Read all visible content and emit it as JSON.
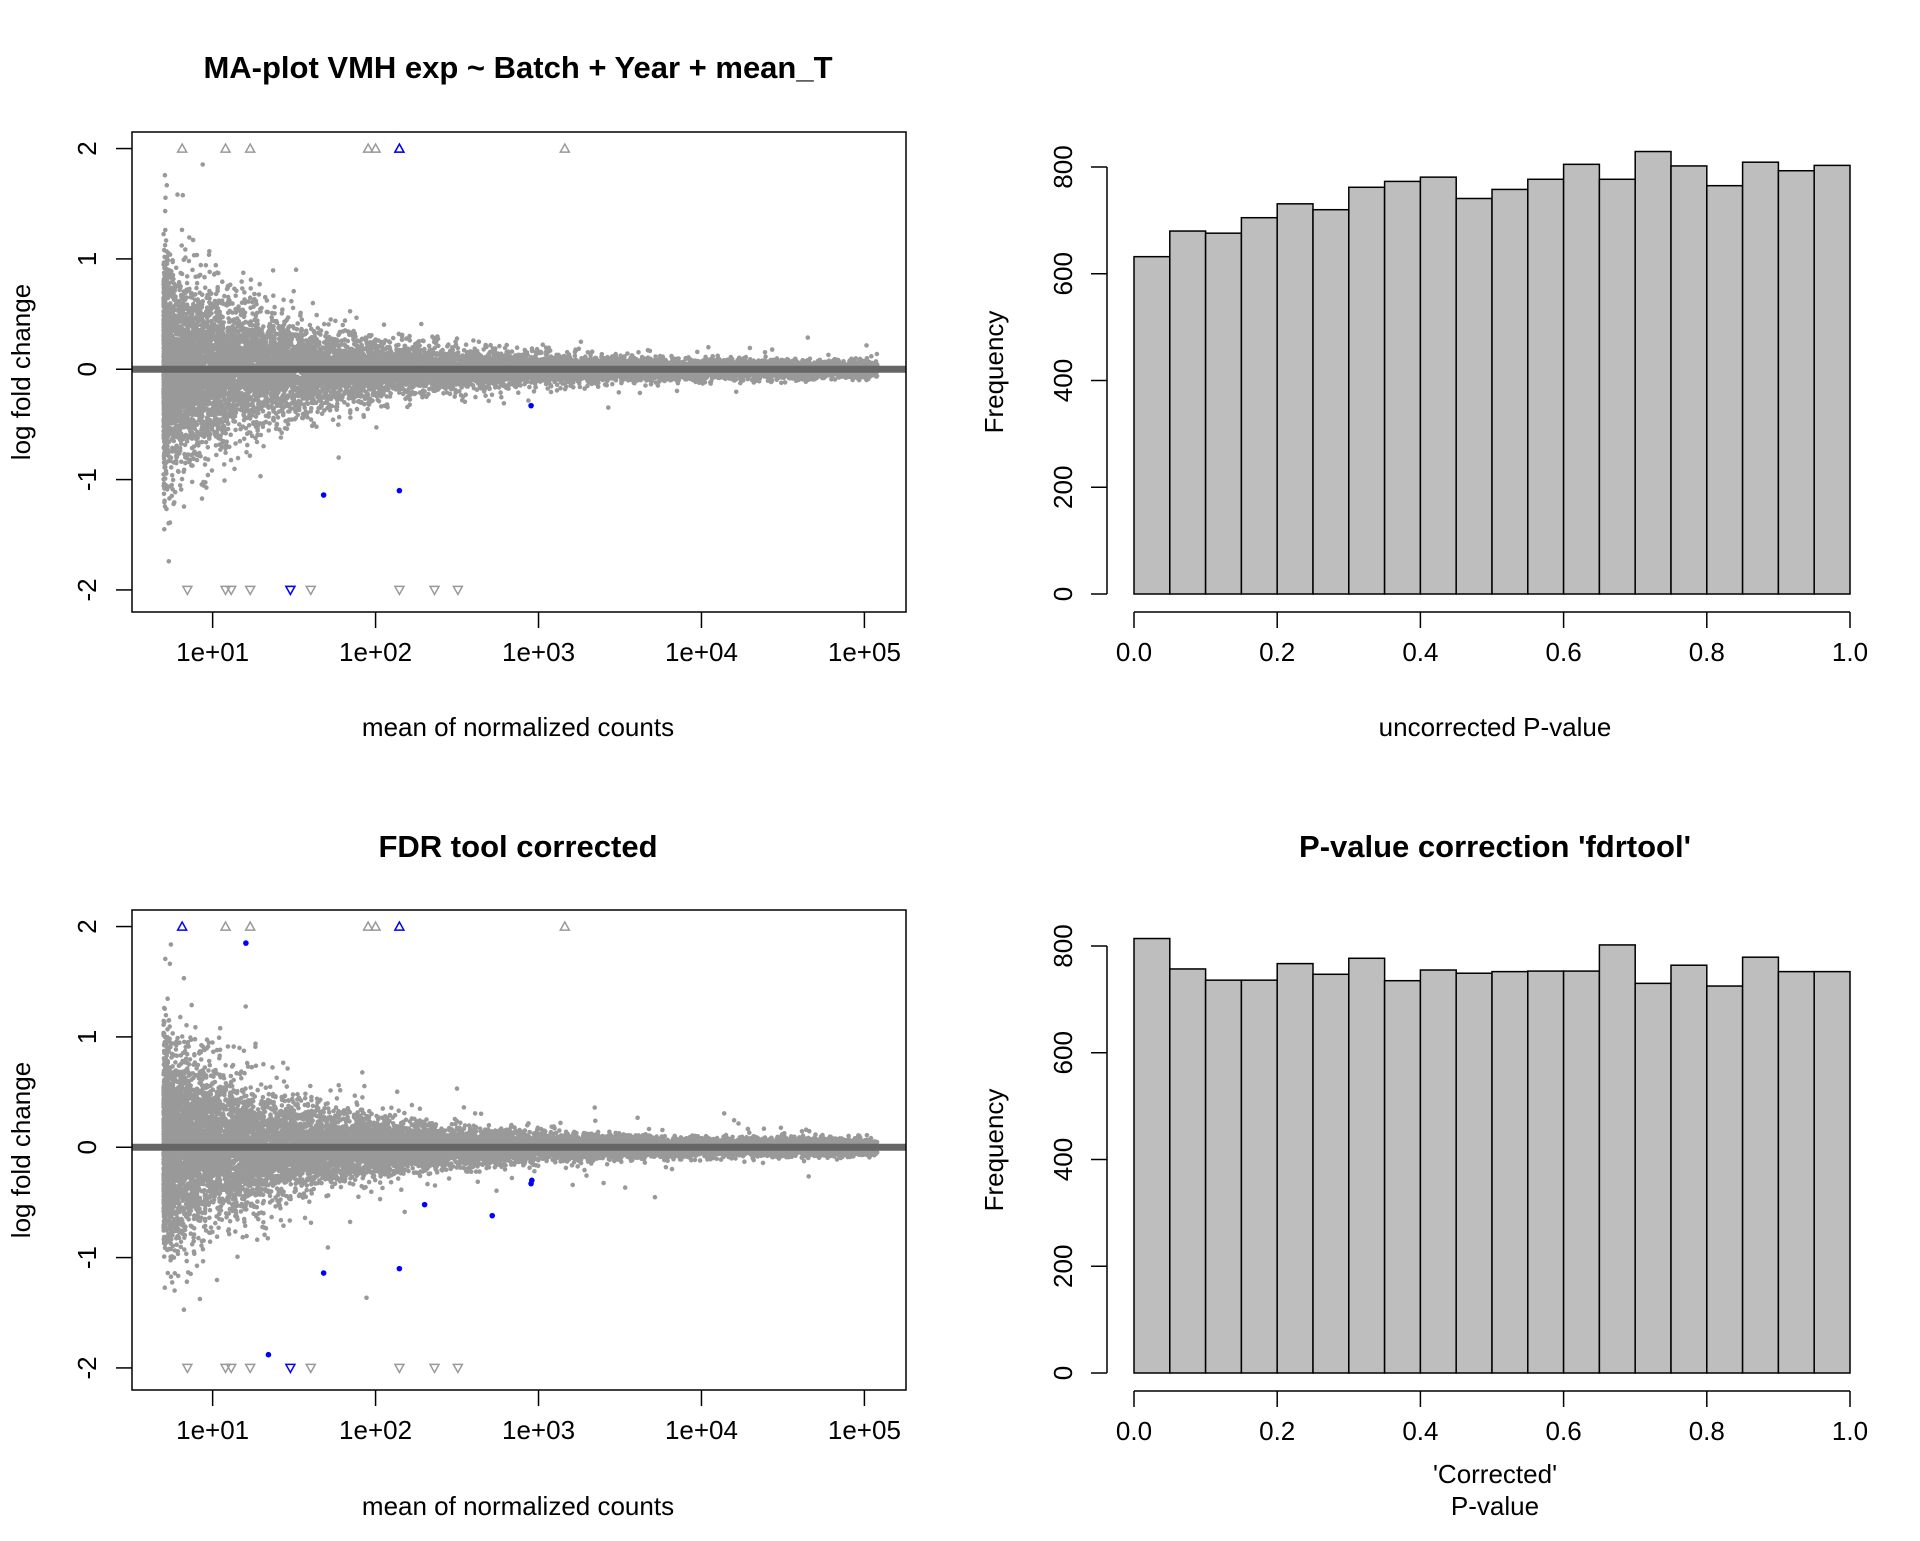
{
  "charts": {
    "ma_top": {
      "title": "MA-plot VMH exp ~ Batch + Year + mean_T",
      "xlabel": "mean of normalized counts",
      "ylabel": "log fold change",
      "xticks": [
        "1e+01",
        "1e+02",
        "1e+03",
        "1e+04",
        "1e+05"
      ],
      "yticks": [
        "-2",
        "-1",
        "0",
        "1",
        "2"
      ]
    },
    "hist_top": {
      "title": "",
      "xlabel": "uncorrected P-value",
      "ylabel": "Frequency",
      "xticks": [
        "0.0",
        "0.2",
        "0.4",
        "0.6",
        "0.8",
        "1.0"
      ],
      "yticks": [
        "0",
        "200",
        "400",
        "600",
        "800"
      ]
    },
    "ma_bottom": {
      "title": "FDR tool corrected",
      "xlabel": "mean of normalized counts",
      "ylabel": "log fold change",
      "xticks": [
        "1e+01",
        "1e+02",
        "1e+03",
        "1e+04",
        "1e+05"
      ],
      "yticks": [
        "-2",
        "-1",
        "0",
        "1",
        "2"
      ]
    },
    "hist_bottom": {
      "title": "P-value correction 'fdrtool'",
      "xlabel_line1": "'Corrected'",
      "xlabel_line2": "P-value",
      "ylabel": "Frequency",
      "xticks": [
        "0.0",
        "0.2",
        "0.4",
        "0.6",
        "0.8",
        "1.0"
      ],
      "yticks": [
        "0",
        "200",
        "400",
        "600",
        "800"
      ]
    }
  },
  "colors": {
    "points": "#999999",
    "significant": "#0000ff",
    "zero_line": "#666666",
    "bars": "#bebebe"
  },
  "chart_data": [
    {
      "type": "scatter",
      "title": "MA-plot VMH exp ~ Batch + Year + mean_T",
      "xlabel": "mean of normalized counts",
      "ylabel": "log fold change",
      "x_scale": "log10",
      "xlim": [
        3.2,
        180000
      ],
      "ylim": [
        -2.2,
        2.15
      ],
      "zero_line": 0,
      "cloud": {
        "x_min": 5,
        "x_max": 120000,
        "y_spread_at_low_mean": 0.6,
        "y_spread_at_high_mean": 0.05,
        "note_points": "dense cloud of grey points"
      },
      "out_of_range_up": [
        6.5,
        12,
        17,
        90,
        100,
        140,
        1450
      ],
      "out_of_range_down": [
        7,
        12,
        13,
        17,
        30,
        40,
        140,
        230,
        320
      ],
      "significant_points": [
        {
          "x": 140,
          "y": 2.0,
          "shape": "triangle-up"
        },
        {
          "x": 30,
          "y": -2.0,
          "shape": "triangle-down"
        },
        {
          "x": 900,
          "y": -0.33,
          "shape": "dot"
        },
        {
          "x": 48,
          "y": -1.14,
          "shape": "dot"
        },
        {
          "x": 140,
          "y": -1.1,
          "shape": "dot"
        }
      ]
    },
    {
      "type": "bar",
      "xlabel": "uncorrected P-value",
      "ylabel": "Frequency",
      "xlim": [
        0,
        1
      ],
      "ylim": [
        0,
        800
      ],
      "bin_width": 0.05,
      "categories": [
        "0.00-0.05",
        "0.05-0.10",
        "0.10-0.15",
        "0.15-0.20",
        "0.20-0.25",
        "0.25-0.30",
        "0.30-0.35",
        "0.35-0.40",
        "0.40-0.45",
        "0.45-0.50",
        "0.50-0.55",
        "0.55-0.60",
        "0.60-0.65",
        "0.65-0.70",
        "0.70-0.75",
        "0.75-0.80",
        "0.80-0.85",
        "0.85-0.90",
        "0.90-0.95",
        "0.95-1.00"
      ],
      "values": [
        632,
        680,
        676,
        705,
        731,
        720,
        762,
        773,
        781,
        741,
        758,
        777,
        805,
        777,
        829,
        802,
        765,
        809,
        793,
        803
      ]
    },
    {
      "type": "scatter",
      "title": "FDR tool corrected",
      "xlabel": "mean of normalized counts",
      "ylabel": "log fold change",
      "x_scale": "log10",
      "xlim": [
        3.2,
        180000
      ],
      "ylim": [
        -2.2,
        2.15
      ],
      "zero_line": 0,
      "cloud": {
        "x_min": 5,
        "x_max": 120000,
        "y_spread_at_low_mean": 0.6,
        "y_spread_at_high_mean": 0.05,
        "note_points": "dense cloud of grey points"
      },
      "out_of_range_up": [
        12,
        17,
        90,
        100,
        1450
      ],
      "out_of_range_down": [
        7,
        12,
        13,
        17,
        40,
        140,
        230,
        320
      ],
      "significant_points": [
        {
          "x": 6.5,
          "y": 2.0,
          "shape": "triangle-up"
        },
        {
          "x": 140,
          "y": 2.0,
          "shape": "triangle-up"
        },
        {
          "x": 30,
          "y": -2.0,
          "shape": "triangle-down"
        },
        {
          "x": 16,
          "y": 1.85,
          "shape": "dot"
        },
        {
          "x": 900,
          "y": -0.33,
          "shape": "dot"
        },
        {
          "x": 910,
          "y": -0.3,
          "shape": "dot"
        },
        {
          "x": 200,
          "y": -0.52,
          "shape": "dot"
        },
        {
          "x": 520,
          "y": -0.62,
          "shape": "dot"
        },
        {
          "x": 48,
          "y": -1.14,
          "shape": "dot"
        },
        {
          "x": 140,
          "y": -1.1,
          "shape": "dot"
        },
        {
          "x": 22,
          "y": -1.88,
          "shape": "dot"
        }
      ]
    },
    {
      "type": "bar",
      "title": "P-value correction 'fdrtool'",
      "xlabel": "'Corrected' P-value",
      "ylabel": "Frequency",
      "xlim": [
        0,
        1
      ],
      "ylim": [
        0,
        800
      ],
      "bin_width": 0.05,
      "categories": [
        "0.00-0.05",
        "0.05-0.10",
        "0.10-0.15",
        "0.15-0.20",
        "0.20-0.25",
        "0.25-0.30",
        "0.30-0.35",
        "0.35-0.40",
        "0.40-0.45",
        "0.45-0.50",
        "0.50-0.55",
        "0.55-0.60",
        "0.60-0.65",
        "0.65-0.70",
        "0.70-0.75",
        "0.75-0.80",
        "0.80-0.85",
        "0.85-0.90",
        "0.90-0.95",
        "0.95-1.00"
      ],
      "values": [
        814,
        757,
        736,
        736,
        767,
        747,
        777,
        735,
        755,
        749,
        752,
        753,
        753,
        802,
        730,
        764,
        725,
        779,
        752,
        752
      ]
    }
  ]
}
